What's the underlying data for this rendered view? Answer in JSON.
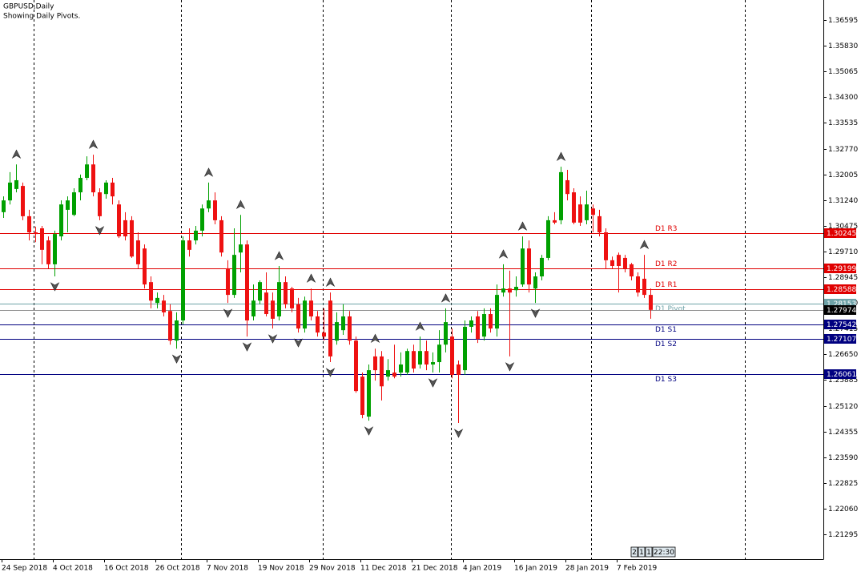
{
  "chart_data": {
    "type": "candlestick",
    "title": "GBPUSD,Daily",
    "subtitle": "Showing Daily Pivots.",
    "categories": [
      "24 Sep 2018",
      null,
      null,
      null,
      null,
      null,
      null,
      null,
      "4 Oct 2018",
      null,
      null,
      null,
      null,
      null,
      null,
      null,
      "16 Oct 2018",
      null,
      null,
      null,
      null,
      null,
      null,
      null,
      "26 Oct 2018",
      null,
      null,
      null,
      null,
      null,
      null,
      null,
      "7 Nov 2018",
      null,
      null,
      null,
      null,
      null,
      null,
      null,
      "19 Nov 2018",
      null,
      null,
      null,
      null,
      null,
      null,
      null,
      "29 Nov 2018",
      null,
      null,
      null,
      null,
      null,
      null,
      null,
      "11 Dec 2018",
      null,
      null,
      null,
      null,
      null,
      null,
      null,
      "21 Dec 2018",
      null,
      null,
      null,
      null,
      null,
      null,
      null,
      "4 Jan 2019",
      null,
      null,
      null,
      null,
      null,
      null,
      null,
      "16 Jan 2019",
      null,
      null,
      null,
      null,
      null,
      null,
      null,
      "28 Jan 2019",
      null,
      null,
      null,
      null,
      null,
      null,
      null,
      "7 Feb 2019",
      null,
      null,
      null,
      null,
      null
    ],
    "open": [
      1.3088,
      1.3123,
      1.3157,
      1.3166,
      1.3076,
      1.3028,
      1.304,
      1.3004,
      1.2933,
      1.3016,
      1.3095,
      1.308,
      1.3147,
      1.319,
      1.323,
      1.3147,
      1.3142,
      1.3176,
      1.3111,
      1.3064,
      1.3064,
      1.3004,
      1.298,
      1.288,
      1.2818,
      1.2825,
      1.2794,
      1.2706,
      1.2766,
      1.3004,
      1.3004,
      1.3033,
      1.3099,
      1.3123,
      1.3064,
      1.2921,
      1.2842,
      1.2968,
      1.2992,
      1.2778,
      1.2825,
      1.2849,
      1.2825,
      1.2778,
      1.288,
      1.2861,
      1.2814,
      1.2742,
      1.2825,
      1.2778,
      1.273,
      1.2825,
      1.2706,
      1.2737,
      1.2778,
      1.2706,
      1.2599,
      1.248,
      1.2659,
      1.2659,
      1.2599,
      1.2611,
      1.2611,
      1.2611,
      1.2675,
      1.2635,
      1.2675,
      1.2635,
      1.2642,
      1.2694,
      1.2718,
      1.2635,
      1.2618,
      1.2747,
      1.2778,
      1.2718,
      1.2785,
      1.2742,
      1.2849,
      1.2861,
      1.2856,
      1.2873,
      1.298,
      1.2861,
      1.2897,
      1.2952,
      1.3064,
      1.3064,
      1.3183,
      1.3147,
      1.3111,
      1.3064,
      1.3099,
      1.3076,
      1.3028,
      1.2945,
      1.2961,
      1.2952,
      1.2933,
      1.2897,
      1.289,
      1.2842
    ],
    "high": [
      1.3135,
      1.3207,
      1.323,
      1.3176,
      1.3095,
      1.3045,
      1.3047,
      1.3016,
      1.3033,
      1.3123,
      1.3135,
      1.3159,
      1.32,
      1.3254,
      1.3259,
      1.3159,
      1.3183,
      1.319,
      1.3123,
      1.3088,
      1.3076,
      1.3028,
      1.2992,
      1.2897,
      1.2849,
      1.2842,
      1.2814,
      1.279,
      1.3016,
      1.304,
      1.3047,
      1.3111,
      1.3176,
      1.3147,
      1.3076,
      1.2945,
      1.304,
      1.308,
      1.3004,
      1.2873,
      1.2885,
      1.2909,
      1.2849,
      1.2928,
      1.2897,
      1.2866,
      1.2833,
      1.2837,
      1.2861,
      1.2794,
      1.2802,
      1.2849,
      1.279,
      1.2814,
      1.2794,
      1.2718,
      1.2611,
      1.2635,
      1.2682,
      1.2675,
      1.2651,
      1.2694,
      1.2671,
      1.2682,
      1.2694,
      1.2718,
      1.2706,
      1.2671,
      1.2737,
      1.2802,
      1.2742,
      1.2647,
      1.2766,
      1.2778,
      1.2794,
      1.2802,
      1.2802,
      1.2873,
      1.2933,
      1.2914,
      1.2897,
      1.3016,
      1.3004,
      1.2909,
      1.2961,
      1.3076,
      1.3088,
      1.3223,
      1.3214,
      1.3159,
      1.3135,
      1.3152,
      1.3111,
      1.3095,
      1.304,
      1.2956,
      1.2968,
      1.2961,
      1.2937,
      1.2909,
      1.2961,
      1.2861
    ],
    "low": [
      1.3071,
      1.3111,
      1.3147,
      1.3064,
      1.3004,
      1.2999,
      1.2933,
      1.2921,
      1.2897,
      1.3004,
      1.3028,
      1.3076,
      1.3123,
      1.3183,
      1.3135,
      1.3064,
      1.3128,
      1.3111,
      1.3011,
      1.3004,
      1.2952,
      1.2921,
      1.2861,
      1.2802,
      1.2802,
      1.2778,
      1.2694,
      1.2682,
      1.2754,
      1.2956,
      1.2992,
      1.3016,
      1.3088,
      1.3052,
      1.2956,
      1.2818,
      1.2833,
      1.2909,
      1.2718,
      1.2766,
      1.2814,
      1.2778,
      1.2742,
      1.2766,
      1.2802,
      1.279,
      1.273,
      1.273,
      1.2766,
      1.2718,
      1.2706,
      1.2642,
      1.2694,
      1.2723,
      1.2694,
      1.2551,
      1.2475,
      1.2468,
      1.2587,
      1.2528,
      1.2587,
      1.2594,
      1.2599,
      1.2604,
      1.2611,
      1.2623,
      1.2618,
      1.2611,
      1.2611,
      1.2671,
      1.2594,
      1.2461,
      1.2604,
      1.273,
      1.2699,
      1.2706,
      1.273,
      1.2718,
      1.2837,
      1.2659,
      1.2837,
      1.2866,
      1.2849,
      1.2818,
      1.2885,
      1.2945,
      1.3052,
      1.3052,
      1.3123,
      1.3052,
      1.3047,
      1.3052,
      1.3028,
      1.3016,
      1.2921,
      1.2921,
      1.2849,
      1.2909,
      1.2885,
      1.2837,
      1.2833,
      1.2771
    ],
    "close": [
      1.3123,
      1.3176,
      1.3183,
      1.3076,
      1.3028,
      1.3023,
      1.2976,
      1.2933,
      1.3023,
      1.3111,
      1.3123,
      1.3147,
      1.319,
      1.323,
      1.3147,
      1.3076,
      1.3176,
      1.3135,
      1.3016,
      1.3016,
      1.2956,
      1.2933,
      1.2873,
      1.2825,
      1.2833,
      1.279,
      1.2706,
      1.2766,
      1.3004,
      1.2976,
      1.3033,
      1.3099,
      1.3123,
      1.3064,
      1.2968,
      1.2842,
      1.2961,
      1.2992,
      1.2766,
      1.2825,
      1.288,
      1.2785,
      1.2771,
      1.288,
      1.2814,
      1.2802,
      1.2742,
      1.2825,
      1.2778,
      1.273,
      1.2718,
      1.2659,
      1.2761,
      1.2778,
      1.2706,
      1.2556,
      1.2485,
      1.2618,
      1.2618,
      1.257,
      1.2618,
      1.2599,
      1.2635,
      1.2675,
      1.2623,
      1.2675,
      1.2635,
      1.2642,
      1.2694,
      1.2761,
      1.2604,
      1.2604,
      1.2747,
      1.2766,
      1.2711,
      1.2785,
      1.2742,
      1.2842,
      1.2861,
      1.2849,
      1.2866,
      1.298,
      1.2873,
      1.2897,
      1.2952,
      1.3064,
      1.3057,
      1.3207,
      1.3142,
      1.3057,
      1.3057,
      1.3111,
      1.308,
      1.3028,
      1.2945,
      1.2928,
      1.2928,
      1.2921,
      1.2897,
      1.2849,
      1.2842,
      1.27974
    ],
    "up_color": "#00a000",
    "down_color": "#ee1111",
    "ylim": [
      1.2056,
      1.3719
    ],
    "yticks": [
      1.21295,
      {
        "value": 1.2206,
        "label": "1.22060"
      },
      1.22825,
      {
        "value": 1.2359,
        "label": "1.23590"
      },
      1.24355,
      {
        "value": 1.2512,
        "label": "1.25120"
      },
      1.25885,
      {
        "value": 1.2665,
        "label": "1.26650"
      },
      1.27415,
      {
        "value": 1.2818,
        "label": "1.28180"
      },
      1.28945,
      {
        "value": 1.2971,
        "label": "1.29710"
      },
      1.30475,
      {
        "value": 1.3124,
        "label": "1.31240"
      },
      1.32005,
      {
        "value": 1.3277,
        "label": "1.32770"
      },
      1.33535,
      {
        "value": 1.343,
        "label": "1.34300"
      },
      1.35065,
      {
        "value": 1.3583,
        "label": "1.35830"
      },
      1.36595
    ],
    "pivots": [
      {
        "name": "D1 R3",
        "value": 1.30245,
        "color": "#e00000"
      },
      {
        "name": "D1 R2",
        "value": 1.29199,
        "color": "#e00000"
      },
      {
        "name": "D1 R1",
        "value": 1.28588,
        "color": "#e00000"
      },
      {
        "name": "D1 Pivot",
        "value": 1.28153,
        "color": "#6fa3a8"
      },
      {
        "name": "D1 S1",
        "value": 1.27542,
        "color": "#000080"
      },
      {
        "name": "D1 S2",
        "value": 1.27107,
        "color": "#000080"
      },
      {
        "name": "D1 S3",
        "value": 1.26061,
        "color": "#000080"
      }
    ],
    "last_price": {
      "value": 1.27974,
      "color": "#000000"
    },
    "fractals_up": [
      2,
      14,
      32,
      37,
      43,
      48,
      51,
      58,
      65,
      69,
      78,
      81,
      87,
      100
    ],
    "fractals_down": [
      8,
      15,
      27,
      35,
      38,
      42,
      46,
      51,
      57,
      67,
      71,
      79,
      83
    ]
  },
  "timer": [
    "2",
    "1",
    "1",
    "22:30"
  ]
}
